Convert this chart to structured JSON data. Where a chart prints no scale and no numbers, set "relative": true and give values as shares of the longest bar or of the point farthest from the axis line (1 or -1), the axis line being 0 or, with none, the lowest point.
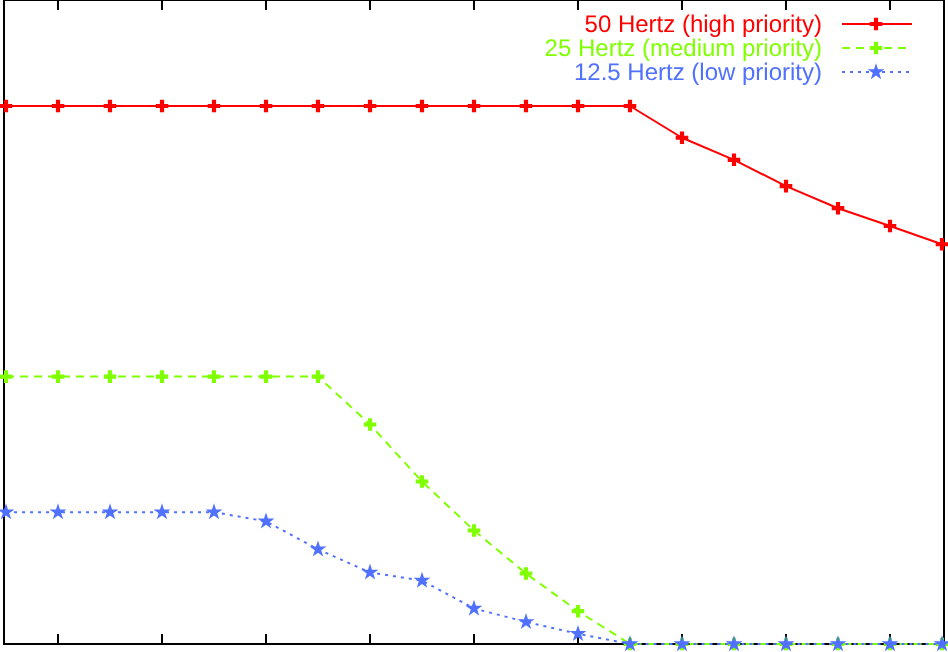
{
  "chart_data": {
    "type": "line",
    "relative": true,
    "categories": [
      null,
      null,
      null,
      null,
      null,
      null,
      null,
      null,
      null,
      null,
      null,
      null,
      null,
      null,
      null,
      null,
      null,
      null,
      null
    ],
    "legend": "top right",
    "series": [
      {
        "name": "50 Hertz (high priority)",
        "color": "#ff0000",
        "marker": "cross",
        "line_style": "solid",
        "values": [
          1,
          1,
          1,
          1,
          1,
          1,
          1,
          1,
          1,
          1,
          1,
          1,
          1,
          0.941,
          0.9,
          0.851,
          0.81,
          0.777,
          0.743
        ]
      },
      {
        "name": "25 Hertz (medium priority)",
        "color": "#80ff00",
        "marker": "cross",
        "line_style": "dashed",
        "values": [
          0.497,
          0.497,
          0.497,
          0.497,
          0.497,
          0.497,
          0.497,
          0.408,
          0.302,
          0.211,
          0.131,
          0.061,
          0,
          0,
          0,
          0,
          0,
          0,
          0
        ]
      },
      {
        "name": "12.5 Hertz (low priority)",
        "color": "#5070ff",
        "marker": "star",
        "line_style": "dotted",
        "values": [
          0.245,
          0.245,
          0.245,
          0.245,
          0.245,
          0.228,
          0.176,
          0.133,
          0.118,
          0.066,
          0.041,
          0.019,
          0,
          0,
          0,
          0,
          0,
          0,
          0
        ]
      }
    ]
  }
}
